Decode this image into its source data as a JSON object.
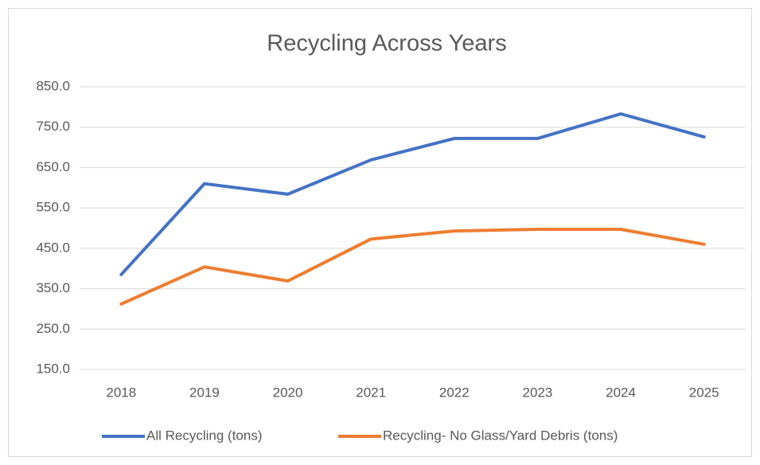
{
  "chart_data": {
    "type": "line",
    "title": "Recycling Across Years",
    "categories": [
      "2018",
      "2019",
      "2020",
      "2021",
      "2022",
      "2023",
      "2024",
      "2025"
    ],
    "series": [
      {
        "name": "All Recycling (tons)",
        "color": "#4472c4",
        "values": [
          385,
          610,
          584,
          669,
          722,
          722,
          783,
          726
        ]
      },
      {
        "name": "Recycling- No Glass/Yard Debris (tons)",
        "color": "#ed7d31",
        "values": [
          312,
          404,
          369,
          473,
          493,
          497,
          497,
          460
        ]
      }
    ],
    "ylim": [
      150,
      850
    ],
    "yticks": [
      {
        "value": 150,
        "label": "150.0"
      },
      {
        "value": 250,
        "label": "250.0"
      },
      {
        "value": 350,
        "label": "350.0"
      },
      {
        "value": 450,
        "label": "450.0"
      },
      {
        "value": 550,
        "label": "550.0"
      },
      {
        "value": 650,
        "label": "650.0"
      },
      {
        "value": 750,
        "label": "750.0"
      },
      {
        "value": 850,
        "label": "850.0"
      }
    ],
    "grid": true,
    "legend": "bottom"
  }
}
